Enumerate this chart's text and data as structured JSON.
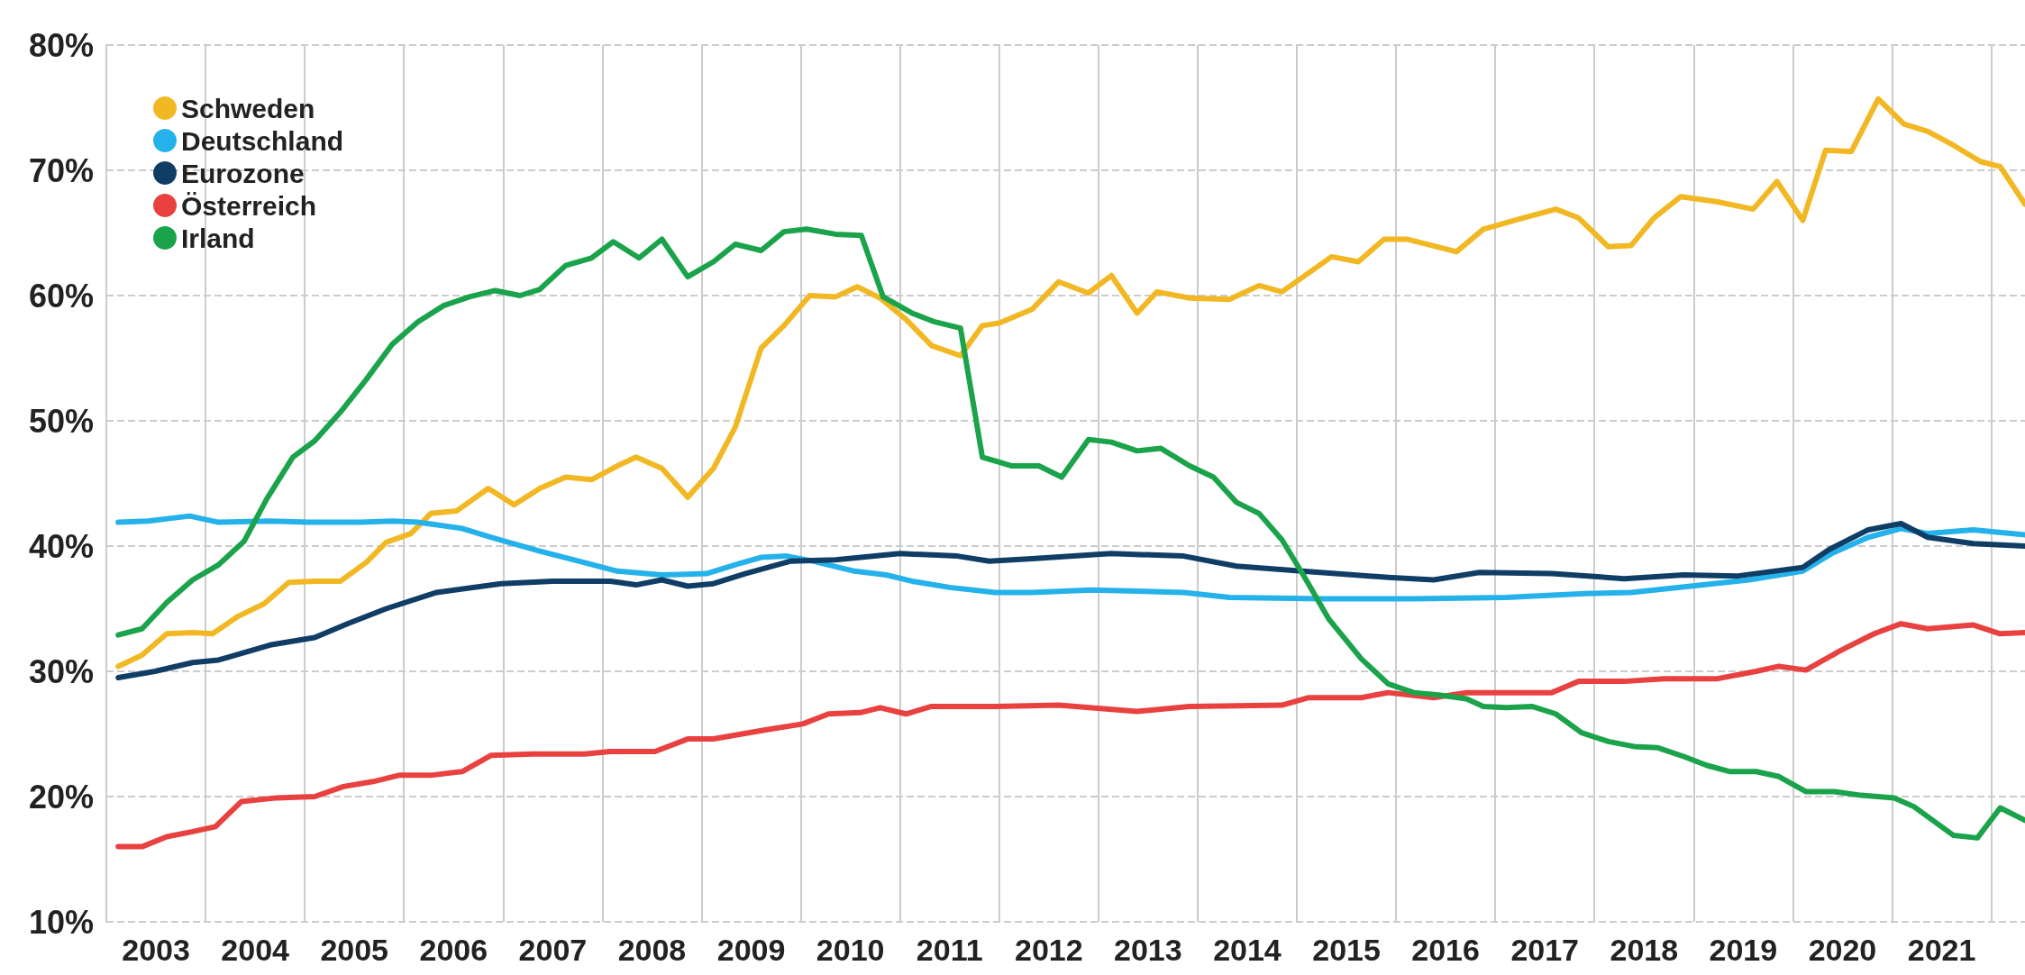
{
  "chart_data": {
    "type": "line",
    "xlim": [
      2003,
      2022.34
    ],
    "ylim": [
      10,
      80
    ],
    "xticks": [
      {
        "value": 2003,
        "label": null
      },
      {
        "value": 2003.5,
        "label": "2003"
      },
      {
        "value": 2004,
        "label": null
      },
      {
        "value": 2004.5,
        "label": "2004"
      },
      {
        "value": 2005,
        "label": null
      },
      {
        "value": 2005.5,
        "label": "2005"
      },
      {
        "value": 2006,
        "label": null
      },
      {
        "value": 2006.5,
        "label": "2006"
      },
      {
        "value": 2007,
        "label": null
      },
      {
        "value": 2007.5,
        "label": "2007"
      },
      {
        "value": 2008,
        "label": null
      },
      {
        "value": 2008.5,
        "label": "2008"
      },
      {
        "value": 2009,
        "label": null
      },
      {
        "value": 2009.5,
        "label": "2009"
      },
      {
        "value": 2010,
        "label": null
      },
      {
        "value": 2010.5,
        "label": "2010"
      },
      {
        "value": 2011,
        "label": null
      },
      {
        "value": 2011.5,
        "label": "2011"
      },
      {
        "value": 2012,
        "label": null
      },
      {
        "value": 2012.5,
        "label": "2012"
      },
      {
        "value": 2013,
        "label": null
      },
      {
        "value": 2013.5,
        "label": "2013"
      },
      {
        "value": 2014,
        "label": null
      },
      {
        "value": 2014.5,
        "label": "2014"
      },
      {
        "value": 2015,
        "label": null
      },
      {
        "value": 2015.5,
        "label": "2015"
      },
      {
        "value": 2016,
        "label": null
      },
      {
        "value": 2016.5,
        "label": "2016"
      },
      {
        "value": 2017,
        "label": null
      },
      {
        "value": 2017.5,
        "label": "2017"
      },
      {
        "value": 2018,
        "label": null
      },
      {
        "value": 2018.5,
        "label": "2018"
      },
      {
        "value": 2019,
        "label": null
      },
      {
        "value": 2019.5,
        "label": "2019"
      },
      {
        "value": 2020,
        "label": null
      },
      {
        "value": 2020.5,
        "label": "2020"
      },
      {
        "value": 2021,
        "label": null
      },
      {
        "value": 2021.5,
        "label": "2021"
      },
      {
        "value": 2022,
        "label": null
      }
    ],
    "yticks": [
      {
        "value": 10,
        "label": "10%"
      },
      {
        "value": 20,
        "label": "20%"
      },
      {
        "value": 30,
        "label": "30%"
      },
      {
        "value": 40,
        "label": "40%"
      },
      {
        "value": 50,
        "label": "50%"
      },
      {
        "value": 60,
        "label": "60%"
      },
      {
        "value": 70,
        "label": "70%"
      },
      {
        "value": 80,
        "label": "80%"
      }
    ],
    "grid": true,
    "legend": "top left",
    "marker": "none",
    "line_style": "solid",
    "series": [
      {
        "name": "Schweden",
        "color": "#f2b824",
        "x": [
          2003.12,
          2003.36,
          2003.61,
          2003.87,
          2004.07,
          2004.33,
          2004.59,
          2004.84,
          2005.1,
          2005.36,
          2005.62,
          2005.82,
          2006.07,
          2006.27,
          2006.53,
          2006.85,
          2007.11,
          2007.37,
          2007.63,
          2007.89,
          2008.15,
          2008.34,
          2008.6,
          2008.86,
          2009.12,
          2009.34,
          2009.6,
          2009.83,
          2010.09,
          2010.35,
          2010.57,
          2010.8,
          2011.06,
          2011.32,
          2011.61,
          2011.83,
          2012.0,
          2012.33,
          2012.6,
          2012.9,
          2013.13,
          2013.39,
          2013.59,
          2013.92,
          2014.32,
          2014.62,
          2014.85,
          2015.35,
          2015.62,
          2015.88,
          2016.11,
          2016.61,
          2016.88,
          2017.24,
          2017.61,
          2017.84,
          2018.14,
          2018.37,
          2018.6,
          2018.87,
          2019.23,
          2019.6,
          2019.84,
          2020.1,
          2020.33,
          2020.59,
          2020.86,
          2021.12,
          2021.36,
          2021.62,
          2021.89,
          2022.09,
          2022.34
        ],
        "values": [
          30.4,
          31.3,
          33.0,
          33.1,
          33.0,
          34.4,
          35.4,
          37.1,
          37.2,
          37.2,
          38.7,
          40.3,
          41.0,
          42.6,
          42.8,
          44.6,
          43.3,
          44.6,
          45.5,
          45.3,
          46.4,
          47.1,
          46.2,
          43.9,
          46.2,
          49.5,
          55.8,
          57.6,
          60.0,
          59.9,
          60.7,
          59.8,
          58.1,
          56.0,
          55.2,
          57.6,
          57.8,
          58.9,
          61.1,
          60.2,
          61.6,
          58.6,
          60.3,
          59.8,
          59.7,
          60.8,
          60.3,
          63.1,
          62.7,
          64.5,
          64.5,
          63.5,
          65.3,
          66.1,
          66.9,
          66.2,
          63.9,
          64.0,
          66.2,
          67.9,
          67.5,
          66.9,
          69.1,
          66.0,
          71.6,
          71.5,
          75.7,
          73.7,
          73.1,
          72.0,
          70.7,
          70.3,
          67.3
        ]
      },
      {
        "name": "Deutschland",
        "color": "#25b1e9",
        "x": [
          2003.12,
          2003.42,
          2003.84,
          2004.13,
          2004.65,
          2005.04,
          2005.56,
          2005.88,
          2006.14,
          2006.59,
          2006.92,
          2007.37,
          2007.76,
          2008.15,
          2008.6,
          2009.05,
          2009.38,
          2009.6,
          2009.86,
          2010.12,
          2010.54,
          2010.86,
          2011.12,
          2011.5,
          2011.96,
          2012.33,
          2012.93,
          2013.86,
          2014.32,
          2015.25,
          2016.18,
          2017.11,
          2017.9,
          2018.37,
          2018.97,
          2019.56,
          2020.1,
          2020.39,
          2020.76,
          2021.09,
          2021.36,
          2021.82,
          2022.34
        ],
        "values": [
          41.9,
          42.0,
          42.4,
          41.9,
          42.0,
          41.9,
          41.9,
          42.0,
          41.9,
          41.4,
          40.6,
          39.6,
          38.8,
          38.0,
          37.7,
          37.8,
          38.6,
          39.1,
          39.2,
          38.8,
          38.0,
          37.7,
          37.2,
          36.7,
          36.3,
          36.3,
          36.5,
          36.3,
          35.9,
          35.8,
          35.8,
          35.9,
          36.2,
          36.3,
          36.8,
          37.3,
          38.0,
          39.4,
          40.7,
          41.4,
          41.0,
          41.3,
          40.9
        ]
      },
      {
        "name": "Eurozone",
        "color": "#0f3d66",
        "x": [
          2003.12,
          2003.49,
          2003.87,
          2004.13,
          2004.65,
          2005.1,
          2005.43,
          2005.82,
          2006.33,
          2006.98,
          2007.5,
          2008.08,
          2008.34,
          2008.6,
          2008.86,
          2009.12,
          2009.44,
          2009.9,
          2010.35,
          2011.0,
          2011.58,
          2011.9,
          2012.33,
          2013.13,
          2013.86,
          2014.39,
          2015.05,
          2015.92,
          2016.38,
          2016.84,
          2017.57,
          2018.3,
          2018.9,
          2019.43,
          2020.1,
          2020.36,
          2020.76,
          2021.09,
          2021.36,
          2021.82,
          2022.34
        ],
        "values": [
          29.5,
          30.0,
          30.7,
          30.9,
          32.1,
          32.7,
          33.8,
          35.0,
          36.3,
          37.0,
          37.2,
          37.2,
          36.9,
          37.3,
          36.8,
          37.0,
          37.8,
          38.8,
          38.9,
          39.4,
          39.2,
          38.8,
          39.0,
          39.4,
          39.2,
          38.4,
          38.0,
          37.5,
          37.3,
          37.9,
          37.8,
          37.4,
          37.7,
          37.6,
          38.3,
          39.7,
          41.3,
          41.8,
          40.7,
          40.2,
          40.0
        ]
      },
      {
        "name": "Österreich",
        "color": "#e8413f",
        "x": [
          2003.12,
          2003.36,
          2003.61,
          2003.87,
          2004.1,
          2004.36,
          2004.72,
          2005.1,
          2005.39,
          2005.69,
          2005.95,
          2006.27,
          2006.59,
          2006.88,
          2007.3,
          2007.82,
          2008.08,
          2008.53,
          2008.86,
          2009.12,
          2009.63,
          2010.02,
          2010.28,
          2010.6,
          2010.8,
          2011.06,
          2011.32,
          2011.96,
          2012.6,
          2013.39,
          2013.92,
          2014.85,
          2015.12,
          2015.65,
          2015.92,
          2016.38,
          2016.71,
          2017.57,
          2017.84,
          2018.3,
          2018.7,
          2019.23,
          2019.63,
          2019.86,
          2020.13,
          2020.49,
          2020.82,
          2021.09,
          2021.36,
          2021.82,
          2022.09,
          2022.34
        ],
        "values": [
          16.0,
          16.0,
          16.8,
          17.2,
          17.6,
          19.6,
          19.9,
          20.0,
          20.8,
          21.2,
          21.7,
          21.7,
          22.0,
          23.3,
          23.4,
          23.4,
          23.6,
          23.6,
          24.6,
          24.6,
          25.3,
          25.8,
          26.6,
          26.7,
          27.1,
          26.6,
          27.2,
          27.2,
          27.3,
          26.8,
          27.2,
          27.3,
          27.9,
          27.9,
          28.3,
          27.9,
          28.3,
          28.3,
          29.2,
          29.2,
          29.4,
          29.4,
          30.0,
          30.4,
          30.1,
          31.7,
          33.0,
          33.8,
          33.4,
          33.7,
          33.0,
          33.1
        ]
      },
      {
        "name": "Irland",
        "color": "#1aa34a",
        "x": [
          2003.12,
          2003.36,
          2003.61,
          2003.87,
          2004.13,
          2004.39,
          2004.62,
          2004.88,
          2005.1,
          2005.36,
          2005.62,
          2005.88,
          2006.14,
          2006.4,
          2006.66,
          2006.92,
          2007.17,
          2007.37,
          2007.63,
          2007.89,
          2008.11,
          2008.37,
          2008.6,
          2008.86,
          2009.12,
          2009.34,
          2009.6,
          2009.83,
          2010.06,
          2010.35,
          2010.61,
          2010.83,
          2011.12,
          2011.35,
          2011.61,
          2011.83,
          2012.13,
          2012.4,
          2012.63,
          2012.9,
          2013.13,
          2013.39,
          2013.63,
          2013.92,
          2014.16,
          2014.39,
          2014.62,
          2014.85,
          2015.05,
          2015.32,
          2015.65,
          2015.92,
          2016.18,
          2016.45,
          2016.71,
          2016.88,
          2017.11,
          2017.37,
          2017.61,
          2017.87,
          2018.14,
          2018.4,
          2018.64,
          2018.9,
          2019.13,
          2019.36,
          2019.63,
          2019.86,
          2020.13,
          2020.42,
          2020.69,
          2021.02,
          2021.22,
          2021.62,
          2021.86,
          2022.09,
          2022.34
        ],
        "values": [
          32.9,
          33.4,
          35.5,
          37.3,
          38.5,
          40.4,
          43.8,
          47.1,
          48.4,
          50.7,
          53.3,
          56.1,
          57.9,
          59.2,
          59.9,
          60.4,
          60.0,
          60.5,
          62.4,
          63.0,
          64.3,
          63.0,
          64.5,
          61.5,
          62.7,
          64.1,
          63.6,
          65.1,
          65.3,
          64.9,
          64.8,
          59.9,
          58.6,
          57.9,
          57.4,
          47.1,
          46.4,
          46.4,
          45.5,
          48.5,
          48.3,
          47.6,
          47.8,
          46.4,
          45.5,
          43.5,
          42.6,
          40.5,
          37.9,
          34.2,
          31.0,
          29.0,
          28.3,
          28.1,
          27.8,
          27.2,
          27.1,
          27.2,
          26.6,
          25.1,
          24.4,
          24.0,
          23.9,
          23.2,
          22.5,
          22.0,
          22.0,
          21.6,
          20.4,
          20.4,
          20.1,
          19.9,
          19.2,
          16.9,
          16.7,
          19.1,
          18.1
        ]
      }
    ]
  }
}
